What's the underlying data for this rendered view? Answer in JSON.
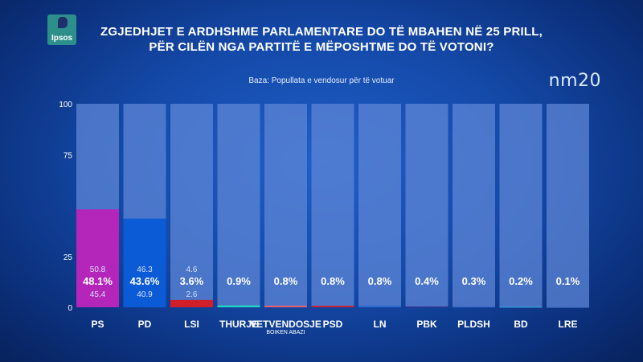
{
  "logo": {
    "text": "Ipsos"
  },
  "header": {
    "title_line1": "ZGJEDHJET E ARDHSHME PARLAMENTARE DO TË MBAHEN NË 25 PRILL,",
    "title_line2": "PËR CILËN NGA PARTITË E MËPOSHTME DO TË VOTONI?",
    "subtitle": "Baza: Popullata e vendosur për të votuar",
    "brand": "nm20"
  },
  "colors": {
    "PS": "#b425b9",
    "PD": "#0b5bd7",
    "LSI": "#d11f2a",
    "THURJE": "#22d6c5",
    "VETVENDOSJE": "#e8616e",
    "PSD": "#c8243a",
    "LN": "#2b6bd0",
    "PBK": "#3a2f8a",
    "PLDSH": "#2f63c9",
    "BD": "#2aa6df",
    "LRE": "#3466b8",
    "track": "#5d86d6"
  },
  "chart_data": {
    "type": "bar",
    "categories": [
      "PS",
      "PD",
      "LSI",
      "THURJE",
      "VETVENDOSJE",
      "PSD",
      "LN",
      "PBK",
      "PLDSH",
      "BD",
      "LRE"
    ],
    "category_sublabels": [
      "",
      "",
      "",
      "",
      "BOIKEN ABAZI",
      "",
      "",
      "",
      "",
      "",
      ""
    ],
    "values": [
      48.1,
      43.6,
      3.6,
      0.9,
      0.8,
      0.8,
      0.8,
      0.4,
      0.3,
      0.2,
      0.1
    ],
    "value_labels": [
      "48.1%",
      "43.6%",
      "3.6%",
      "0.9%",
      "0.8%",
      "0.8%",
      "0.8%",
      "0.4%",
      "0.3%",
      "0.2%",
      "0.1%"
    ],
    "upper": [
      "50.8",
      "46.3",
      "4.6",
      "",
      "",
      "",
      "",
      "",
      "",
      "",
      ""
    ],
    "lower": [
      "45.4",
      "40.9",
      "2.6",
      "",
      "",
      "",
      "",
      "",
      "",
      "",
      ""
    ],
    "ylim": [
      0,
      100
    ],
    "yticks": [
      0,
      25,
      75,
      100
    ],
    "grid": false
  }
}
